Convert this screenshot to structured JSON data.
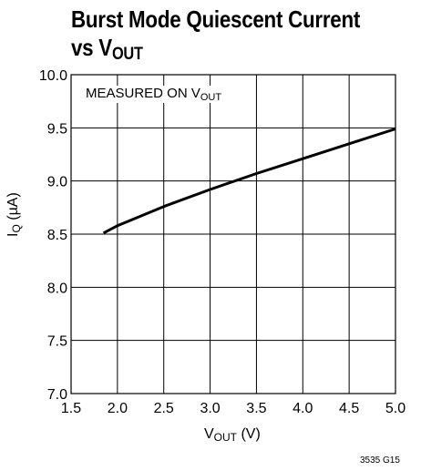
{
  "title": {
    "line1": "Burst Mode Quiescent Current",
    "line2_prefix": "vs V",
    "line2_sub": "OUT"
  },
  "chart_data": {
    "type": "line",
    "x_label": {
      "main": "V",
      "sub": "OUT",
      "unit": " (V)"
    },
    "y_label": {
      "main": "I",
      "sub": "Q",
      "unit": " (µA)"
    },
    "xlim": [
      1.5,
      5.0
    ],
    "ylim": [
      7.0,
      10.0
    ],
    "x_ticks": [
      "1.5",
      "2.0",
      "2.5",
      "3.0",
      "3.5",
      "4.0",
      "4.5",
      "5.0"
    ],
    "y_ticks": [
      "7.0",
      "7.5",
      "8.0",
      "8.5",
      "9.0",
      "9.5",
      "10.0"
    ],
    "grid": true,
    "annotation": {
      "main": "MEASURED ON V",
      "sub": "OUT"
    },
    "series": [
      {
        "x": [
          1.85,
          2.0,
          2.5,
          3.0,
          3.5,
          4.0,
          4.5,
          5.0
        ],
        "y": [
          8.51,
          8.58,
          8.76,
          8.92,
          9.07,
          9.21,
          9.35,
          9.49
        ]
      }
    ],
    "line_color": "#000000"
  },
  "footnote": "3535 G15"
}
